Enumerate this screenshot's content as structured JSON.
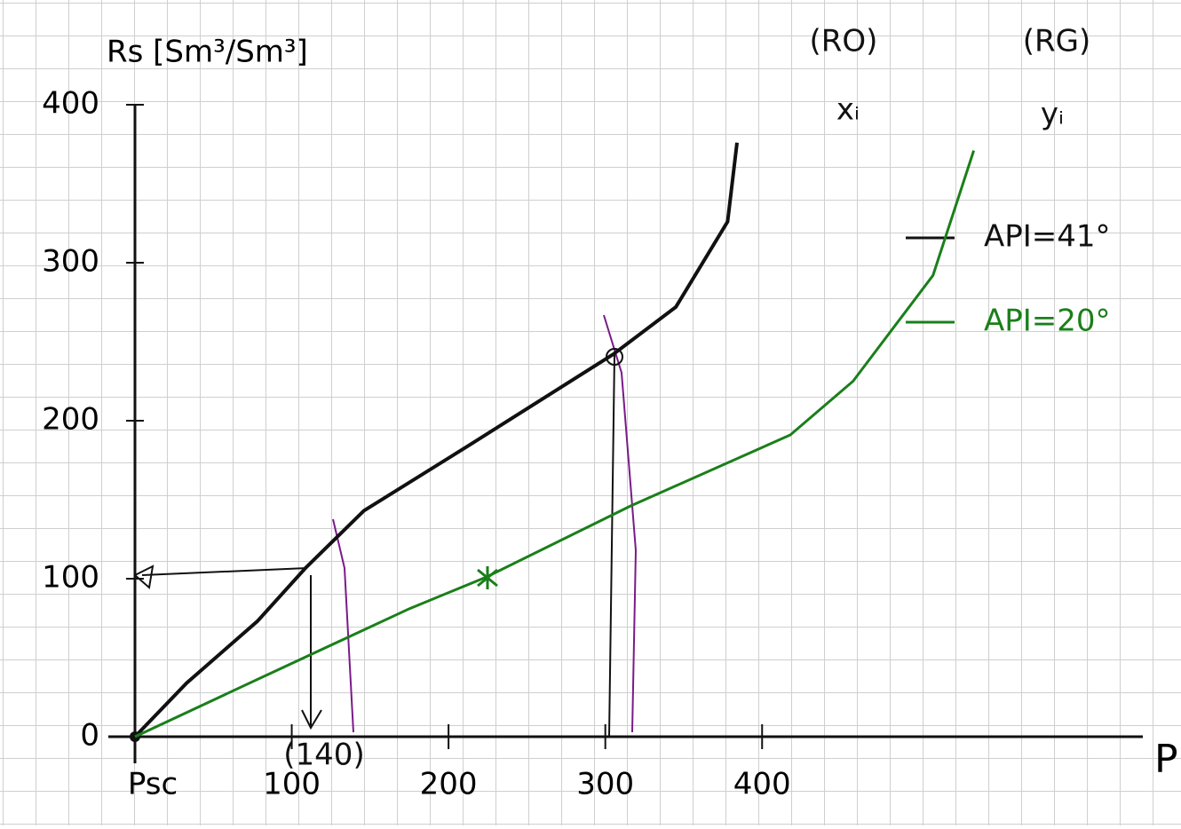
{
  "chart_data": {
    "type": "line",
    "y_label": "Rs [Sm³/Sm³]",
    "x_label": "P",
    "annotations": [
      "(RO)",
      "(RG)",
      "xᵢ",
      "yᵢ",
      "(140)"
    ],
    "xlim": [
      0,
      640
    ],
    "ylim": [
      0,
      400
    ],
    "xticks": [
      {
        "value": 0,
        "label": "Psc"
      },
      100,
      200,
      300,
      400
    ],
    "yticks": [
      0,
      100,
      200,
      300,
      400
    ],
    "grid": true,
    "legend": "right",
    "series": [
      {
        "name": "API=41°",
        "color": "#111111",
        "x": [
          0,
          33,
          78,
          109,
          146,
          214,
          305,
          345,
          378,
          384
        ],
        "values": [
          0,
          34,
          73,
          107,
          143,
          185,
          242,
          272,
          326,
          376
        ]
      },
      {
        "name": "API=20°",
        "color": "#1a7f1a",
        "x": [
          0,
          84,
          175,
          224,
          316,
          418,
          458,
          509,
          535
        ],
        "values": [
          0,
          39,
          81,
          101,
          146,
          191,
          225,
          292,
          371
        ]
      }
    ]
  }
}
